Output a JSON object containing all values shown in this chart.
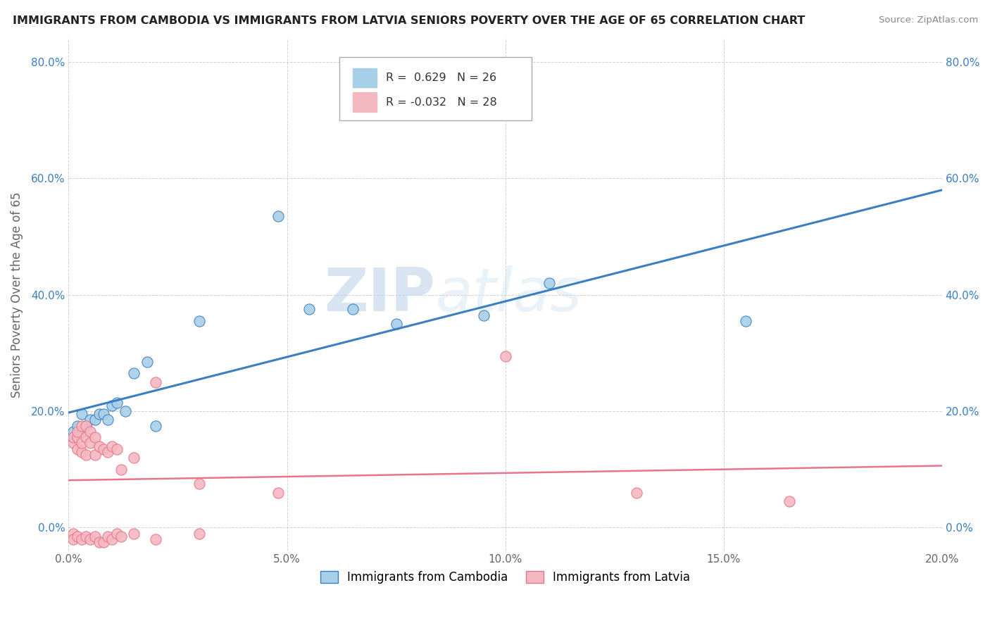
{
  "title": "IMMIGRANTS FROM CAMBODIA VS IMMIGRANTS FROM LATVIA SENIORS POVERTY OVER THE AGE OF 65 CORRELATION CHART",
  "source": "Source: ZipAtlas.com",
  "ylabel": "Seniors Poverty Over the Age of 65",
  "xlim": [
    0.0,
    0.2
  ],
  "ylim": [
    -0.04,
    0.84
  ],
  "yticks": [
    0.0,
    0.2,
    0.4,
    0.6,
    0.8
  ],
  "xticks": [
    0.0,
    0.05,
    0.1,
    0.15,
    0.2
  ],
  "xtick_labels": [
    "0.0%",
    "5.0%",
    "10.0%",
    "15.0%",
    "20.0%"
  ],
  "ytick_labels": [
    "0.0%",
    "20.0%",
    "40.0%",
    "60.0%",
    "80.0%"
  ],
  "cambodia_scatter_color": "#a8cfe8",
  "latvia_scatter_color": "#f4b8c1",
  "cambodia_line_color": "#3a7fc1",
  "latvia_line_color": "#e8748a",
  "r_cambodia": 0.629,
  "n_cambodia": 26,
  "r_latvia": -0.032,
  "n_latvia": 28,
  "legend_label_cambodia": "Immigrants from Cambodia",
  "legend_label_latvia": "Immigrants from Latvia",
  "background_color": "#ffffff",
  "grid_color": "#cccccc",
  "watermark_zip": "ZIP",
  "watermark_atlas": "atlas",
  "cambodia_x": [
    0.001,
    0.001,
    0.002,
    0.002,
    0.003,
    0.003,
    0.004,
    0.005,
    0.006,
    0.007,
    0.008,
    0.009,
    0.01,
    0.011,
    0.013,
    0.015,
    0.018,
    0.02,
    0.03,
    0.048,
    0.055,
    0.065,
    0.075,
    0.095,
    0.11,
    0.155
  ],
  "cambodia_y": [
    0.155,
    0.165,
    0.155,
    0.175,
    0.165,
    0.195,
    0.175,
    0.185,
    0.185,
    0.195,
    0.195,
    0.185,
    0.21,
    0.215,
    0.2,
    0.265,
    0.285,
    0.175,
    0.355,
    0.535,
    0.375,
    0.375,
    0.35,
    0.365,
    0.42,
    0.355
  ],
  "latvia_x": [
    0.001,
    0.001,
    0.002,
    0.002,
    0.002,
    0.003,
    0.003,
    0.003,
    0.004,
    0.004,
    0.004,
    0.005,
    0.005,
    0.006,
    0.006,
    0.007,
    0.008,
    0.009,
    0.01,
    0.011,
    0.012,
    0.015,
    0.02,
    0.03,
    0.048,
    0.1,
    0.13,
    0.165
  ],
  "latvia_y": [
    0.145,
    0.155,
    0.135,
    0.155,
    0.165,
    0.13,
    0.145,
    0.175,
    0.125,
    0.155,
    0.175,
    0.145,
    0.165,
    0.125,
    0.155,
    0.14,
    0.135,
    0.13,
    0.14,
    0.135,
    0.1,
    0.12,
    0.25,
    0.075,
    0.06,
    0.295,
    0.06,
    0.045
  ],
  "latvia_outlier_x": [
    0.002,
    0.003,
    0.004,
    0.004,
    0.005,
    0.006,
    0.007,
    0.008,
    0.01,
    0.012,
    0.02,
    0.048
  ],
  "latvia_outlier_y": [
    -0.01,
    -0.015,
    -0.02,
    -0.005,
    -0.015,
    -0.015,
    -0.02,
    -0.025,
    -0.025,
    -0.01,
    -0.02,
    -0.01
  ]
}
